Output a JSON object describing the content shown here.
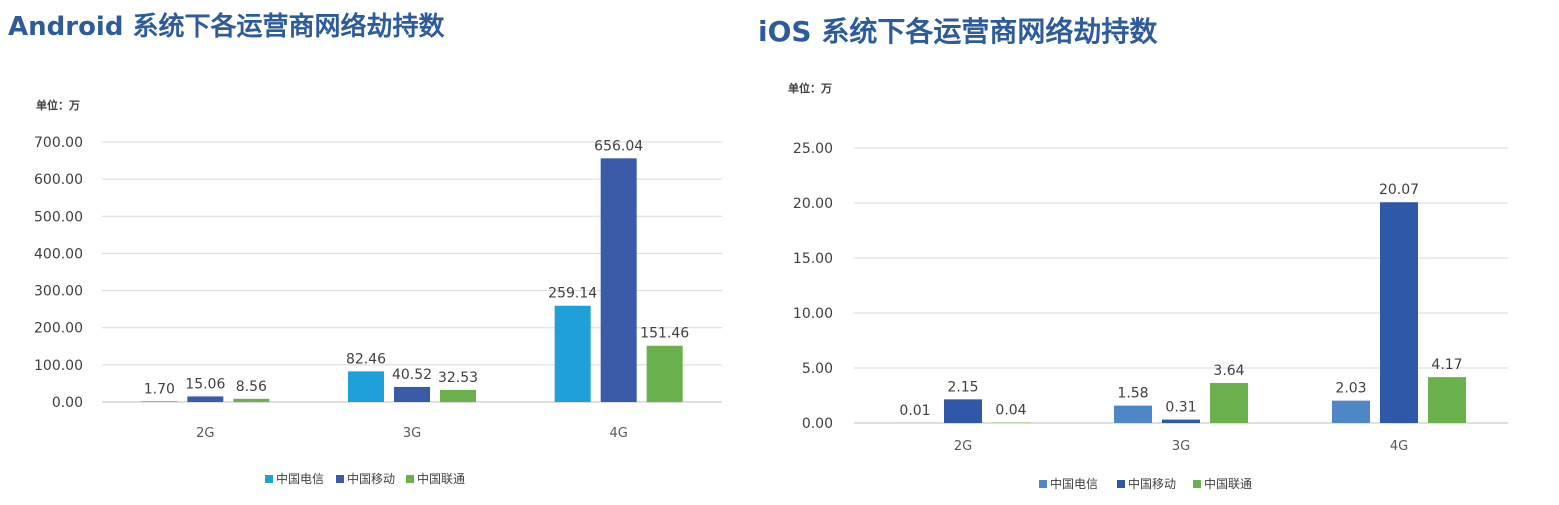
{
  "charts": [
    {
      "id": "android",
      "title": "Android 系统下各运营商网络劫持数",
      "chart_data": {
        "type": "bar",
        "unit_label": "单位：万",
        "categories": [
          "2G",
          "3G",
          "4G"
        ],
        "series": [
          {
            "name": "中国电信",
            "color": "#1fa0d8",
            "values": [
              1.7,
              82.46,
              259.14
            ],
            "labels": [
              "1.70",
              "82.46",
              "259.14"
            ]
          },
          {
            "name": "中国移动",
            "color": "#3a5ba8",
            "values": [
              15.06,
              40.52,
              656.04
            ],
            "labels": [
              "15.06",
              "40.52",
              "656.04"
            ]
          },
          {
            "name": "中国联通",
            "color": "#6ab04c",
            "values": [
              8.56,
              32.53,
              151.46
            ],
            "labels": [
              "8.56",
              "32.53",
              "151.46"
            ]
          }
        ],
        "ylim": [
          0,
          700
        ],
        "yticks": [
          "0.00",
          "100.00",
          "200.00",
          "300.00",
          "400.00",
          "500.00",
          "600.00",
          "700.00"
        ],
        "grid": true,
        "legend_position": "bottom"
      }
    },
    {
      "id": "ios",
      "title": "iOS 系统下各运营商网络劫持数",
      "chart_data": {
        "type": "bar",
        "unit_label": "单位：万",
        "categories": [
          "2G",
          "3G",
          "4G"
        ],
        "series": [
          {
            "name": "中国电信",
            "color": "#4f86c6",
            "values": [
              0.01,
              1.58,
              2.03
            ],
            "labels": [
              "0.01",
              "1.58",
              "2.03"
            ]
          },
          {
            "name": "中国移动",
            "color": "#2f58a8",
            "values": [
              2.15,
              0.31,
              20.07
            ],
            "labels": [
              "2.15",
              "0.31",
              "20.07"
            ]
          },
          {
            "name": "中国联通",
            "color": "#6ab04c",
            "values": [
              0.04,
              3.64,
              4.17
            ],
            "labels": [
              "0.04",
              "3.64",
              "4.17"
            ]
          }
        ],
        "ylim": [
          0,
          25
        ],
        "yticks": [
          "0.00",
          "5.00",
          "10.00",
          "15.00",
          "20.00",
          "25.00"
        ],
        "grid": true,
        "legend_position": "bottom"
      }
    }
  ]
}
